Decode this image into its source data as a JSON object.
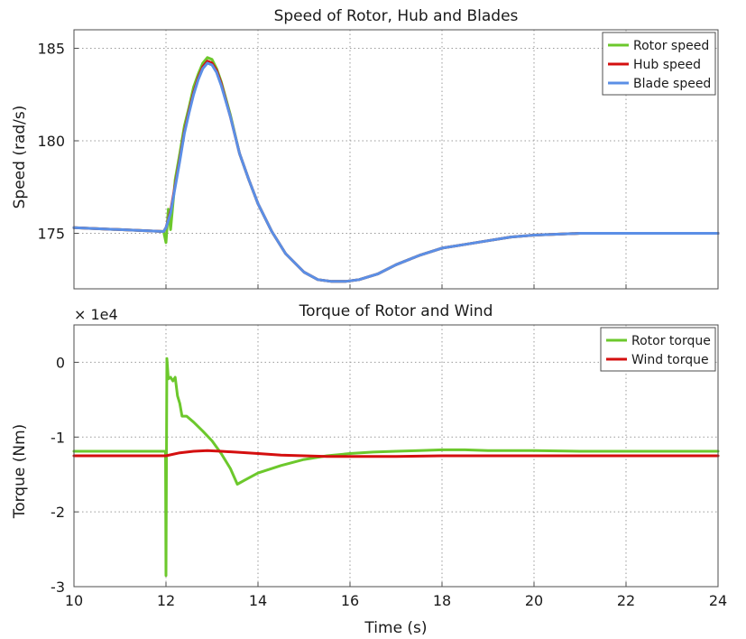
{
  "chart_data": [
    {
      "type": "line",
      "title": "Speed of Rotor, Hub and Blades",
      "xlabel": "",
      "ylabel": "Speed (rad/s)",
      "xlim": [
        10,
        24
      ],
      "ylim": [
        172,
        186
      ],
      "xticks": [
        10,
        12,
        14,
        16,
        18,
        20,
        22,
        24
      ],
      "yticks": [
        175,
        180,
        185
      ],
      "ytick_labels": [
        "175",
        "180",
        "185"
      ],
      "grid": true,
      "legend": "top-right",
      "series": [
        {
          "name": "Rotor speed",
          "color": "#6cc82c",
          "x": [
            10,
            11,
            11.95,
            12.0,
            12.05,
            12.1,
            12.2,
            12.3,
            12.4,
            12.5,
            12.6,
            12.7,
            12.8,
            12.9,
            13.0,
            13.1,
            13.2,
            13.4,
            13.6,
            13.8,
            14.0,
            14.3,
            14.6,
            15.0,
            15.3,
            15.6,
            15.9,
            16.2,
            16.6,
            17.0,
            17.5,
            18.0,
            18.5,
            19.0,
            19.5,
            20.0,
            21.0,
            22.0,
            23.0,
            24.0
          ],
          "y": [
            175.3,
            175.2,
            175.1,
            174.5,
            176.3,
            175.2,
            177.9,
            179.3,
            180.8,
            181.8,
            182.9,
            183.6,
            184.2,
            184.5,
            184.4,
            183.9,
            183.2,
            181.4,
            179.3,
            177.9,
            176.6,
            175.1,
            173.9,
            172.9,
            172.5,
            172.4,
            172.4,
            172.5,
            172.8,
            173.3,
            173.8,
            174.2,
            174.4,
            174.6,
            174.8,
            174.9,
            175.0,
            175.0,
            175.0,
            175.0
          ]
        },
        {
          "name": "Hub speed",
          "color": "#d40f0f",
          "x": [
            10,
            11,
            11.95,
            12.0,
            12.1,
            12.2,
            12.3,
            12.4,
            12.5,
            12.6,
            12.7,
            12.8,
            12.9,
            13.0,
            13.1,
            13.2,
            13.4,
            13.6,
            13.8,
            14.0,
            14.3,
            14.6,
            15.0,
            15.3,
            15.6,
            15.9,
            16.2,
            16.6,
            17.0,
            17.5,
            18.0,
            18.5,
            19.0,
            19.5,
            20.0,
            21.0,
            22.0,
            23.0,
            24.0
          ],
          "y": [
            175.3,
            175.2,
            175.1,
            175.3,
            176.2,
            177.6,
            179.0,
            180.5,
            181.6,
            182.6,
            183.4,
            184.0,
            184.3,
            184.2,
            183.8,
            183.1,
            181.3,
            179.3,
            177.9,
            176.6,
            175.1,
            173.9,
            172.9,
            172.5,
            172.4,
            172.4,
            172.5,
            172.8,
            173.3,
            173.8,
            174.2,
            174.4,
            174.6,
            174.8,
            174.9,
            175.0,
            175.0,
            175.0,
            175.0
          ]
        },
        {
          "name": "Blade speed",
          "color": "#5b8fe6",
          "x": [
            10,
            11,
            11.95,
            12.0,
            12.1,
            12.2,
            12.3,
            12.4,
            12.5,
            12.6,
            12.7,
            12.8,
            12.9,
            13.0,
            13.1,
            13.2,
            13.4,
            13.6,
            13.8,
            14.0,
            14.3,
            14.6,
            15.0,
            15.3,
            15.6,
            15.9,
            16.2,
            16.6,
            17.0,
            17.5,
            18.0,
            18.5,
            19.0,
            19.5,
            20.0,
            21.0,
            22.0,
            23.0,
            24.0
          ],
          "y": [
            175.3,
            175.2,
            175.1,
            175.3,
            176.1,
            177.5,
            178.9,
            180.4,
            181.5,
            182.5,
            183.3,
            183.9,
            184.2,
            184.1,
            183.7,
            183.0,
            181.3,
            179.3,
            177.9,
            176.6,
            175.1,
            173.9,
            172.9,
            172.5,
            172.4,
            172.4,
            172.5,
            172.8,
            173.3,
            173.8,
            174.2,
            174.4,
            174.6,
            174.8,
            174.9,
            175.0,
            175.0,
            175.0,
            175.0
          ]
        }
      ]
    },
    {
      "type": "line",
      "title": "Torque of Rotor and Wind",
      "xlabel": "Time (s)",
      "ylabel": "Torque (Nm)",
      "offset_label": "× 1e4",
      "xlim": [
        10,
        24
      ],
      "ylim": [
        -3,
        0.5
      ],
      "xticks": [
        10,
        12,
        14,
        16,
        18,
        20,
        22,
        24
      ],
      "xtick_labels": [
        "10",
        "12",
        "14",
        "16",
        "18",
        "20",
        "22",
        "24"
      ],
      "yticks": [
        -3,
        -2,
        -1,
        0
      ],
      "ytick_labels": [
        "-3",
        "-2",
        "-1",
        "0"
      ],
      "grid": true,
      "legend": "top-right",
      "series": [
        {
          "name": "Rotor torque",
          "color": "#6cc82c",
          "x": [
            10,
            11,
            11.95,
            11.99,
            12.0,
            12.02,
            12.05,
            12.1,
            12.15,
            12.2,
            12.25,
            12.3,
            12.35,
            12.45,
            12.6,
            12.8,
            13.0,
            13.2,
            13.4,
            13.55,
            13.7,
            14.0,
            14.5,
            15.0,
            15.5,
            16.0,
            16.5,
            17.0,
            17.5,
            18.0,
            18.5,
            19.0,
            20.0,
            21.0,
            22.0,
            23.0,
            24.0
          ],
          "y": [
            -1.19,
            -1.19,
            -1.19,
            -1.19,
            -2.85,
            0.05,
            -0.22,
            -0.2,
            -0.25,
            -0.2,
            -0.45,
            -0.55,
            -0.72,
            -0.72,
            -0.8,
            -0.92,
            -1.05,
            -1.22,
            -1.42,
            -1.63,
            -1.58,
            -1.48,
            -1.38,
            -1.3,
            -1.25,
            -1.22,
            -1.2,
            -1.19,
            -1.18,
            -1.17,
            -1.17,
            -1.18,
            -1.18,
            -1.19,
            -1.19,
            -1.19,
            -1.19
          ]
        },
        {
          "name": "Wind torque",
          "color": "#d40f0f",
          "x": [
            10,
            11,
            12.0,
            12.3,
            12.6,
            12.9,
            13.2,
            13.5,
            14.0,
            14.5,
            15.0,
            15.5,
            16.0,
            17.0,
            18.0,
            19.0,
            20.0,
            22.0,
            24.0
          ],
          "y": [
            -1.25,
            -1.25,
            -1.25,
            -1.21,
            -1.19,
            -1.18,
            -1.19,
            -1.2,
            -1.22,
            -1.24,
            -1.25,
            -1.26,
            -1.26,
            -1.26,
            -1.25,
            -1.25,
            -1.25,
            -1.25,
            -1.25
          ]
        }
      ]
    }
  ]
}
